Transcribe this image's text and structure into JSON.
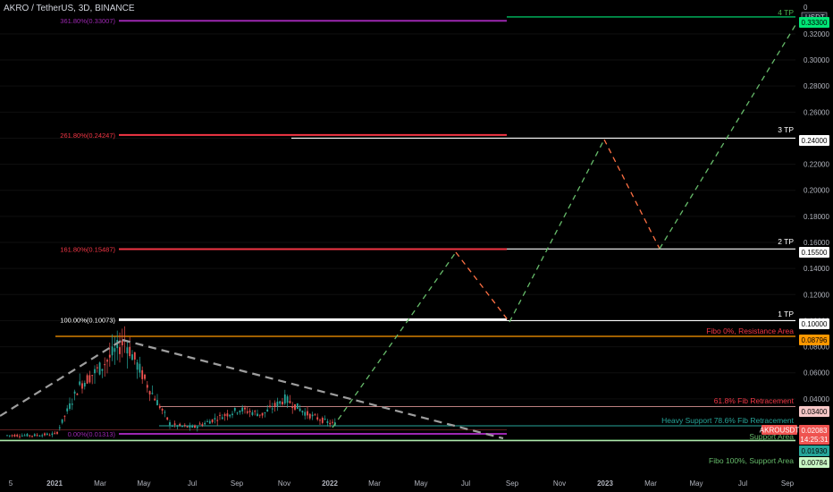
{
  "header": {
    "title": "AKRO / TetherUS, 3D, BINANCE"
  },
  "chart_data": {
    "type": "candlestick",
    "symbol": "AKROUSDT",
    "price_unit": "USDT",
    "current_price": "0.02083",
    "countdown": "14:25:31",
    "y_ticks": [
      "0.32000",
      "0.30000",
      "0.28000",
      "0.26000",
      "0.24000",
      "0.22000",
      "0.20000",
      "0.18000",
      "0.16000",
      "0.14000",
      "0.12000",
      "0.10000",
      "0.08000",
      "0.06000",
      "0.04000"
    ],
    "y_top_label": "0",
    "x_ticks": [
      "5",
      "2021",
      "Mar",
      "May",
      "Jul",
      "Sep",
      "Nov",
      "2022",
      "Mar",
      "May",
      "Jul",
      "Sep",
      "Nov",
      "2023",
      "Mar",
      "May",
      "Jul",
      "Sep"
    ],
    "price_tags": [
      {
        "label": "0.33300",
        "price": 0.333,
        "color": "#00e676",
        "text_color": "#000000"
      },
      {
        "label": "0.24000",
        "price": 0.24,
        "color": "#ffffff",
        "text_color": "#000000"
      },
      {
        "label": "0.15500",
        "price": 0.155,
        "color": "#ffffff",
        "text_color": "#000000"
      },
      {
        "label": "0.10000",
        "price": 0.1,
        "color": "#ffffff",
        "text_color": "#000000"
      },
      {
        "label": "0.08796",
        "price": 0.08796,
        "color": "#ff9800",
        "text_color": "#000000"
      },
      {
        "label": "0.03400",
        "price": 0.034,
        "color": "#f7c7c7",
        "text_color": "#000000"
      },
      {
        "label": "0.01930",
        "price": 0.0193,
        "color": "#26a69a",
        "text_color": "#000000"
      },
      {
        "label": "0.00784",
        "price": 0.00784,
        "color": "#c8f7c5",
        "text_color": "#000000"
      }
    ],
    "fib_levels": [
      {
        "label": "361.80%(0.33007)",
        "price": 0.33007,
        "color": "#9c27b0"
      },
      {
        "label": "261.80%(0.24247)",
        "price": 0.24247,
        "color": "#f23645"
      },
      {
        "label": "161.80%(0.15487)",
        "price": 0.15487,
        "color": "#f23645"
      },
      {
        "label": "100.00%(0.10073)",
        "price": 0.10073,
        "color": "#ffffff"
      },
      {
        "label": "0.00%(0.01313)",
        "price": 0.01313,
        "color": "#9c27b0"
      }
    ],
    "annotations": [
      {
        "text": "4 TP",
        "price": 0.333,
        "color": "#4caf50"
      },
      {
        "text": "3 TP",
        "price": 0.24,
        "color": "#ffffff"
      },
      {
        "text": "2 TP",
        "price": 0.155,
        "color": "#ffffff"
      },
      {
        "text": "1 TP",
        "price": 0.1,
        "color": "#ffffff"
      },
      {
        "text": "Fibo 0%, Resistance Area",
        "price": 0.08796,
        "color": "#f23645"
      },
      {
        "text": "61.8% Fib Retracement",
        "price": 0.034,
        "color": "#f23645"
      },
      {
        "text": "Heavy Support 78.6% Fib Retracement",
        "price": 0.0193,
        "color": "#26a69a"
      },
      {
        "text": "Support Area",
        "price": 0.0193,
        "color": "#66bb6a"
      },
      {
        "text": "Fibo 100%, Support Area",
        "price": 0.00784,
        "color": "#66bb6a"
      }
    ],
    "projection_path": [
      {
        "date": "2022-01",
        "price": 0.0193
      },
      {
        "date": "2022-06",
        "price": 0.155
      },
      {
        "date": "2022-08",
        "price": 0.1
      },
      {
        "date": "2022-11",
        "price": 0.24
      },
      {
        "date": "2023-03",
        "price": 0.155
      },
      {
        "date": "2023-09",
        "price": 0.333
      }
    ],
    "candles_approx": [
      {
        "date": "2020-12",
        "price": 0.012
      },
      {
        "date": "2021-01",
        "price": 0.013
      },
      {
        "date": "2021-02",
        "price": 0.05
      },
      {
        "date": "2021-03",
        "price": 0.065
      },
      {
        "date": "2021-04",
        "price": 0.085
      },
      {
        "date": "2021-05",
        "price": 0.05
      },
      {
        "date": "2021-06",
        "price": 0.02
      },
      {
        "date": "2021-07",
        "price": 0.018
      },
      {
        "date": "2021-08",
        "price": 0.025
      },
      {
        "date": "2021-09",
        "price": 0.032
      },
      {
        "date": "2021-10",
        "price": 0.028
      },
      {
        "date": "2021-11",
        "price": 0.04
      },
      {
        "date": "2021-12",
        "price": 0.028
      },
      {
        "date": "2022-01",
        "price": 0.021
      }
    ]
  }
}
